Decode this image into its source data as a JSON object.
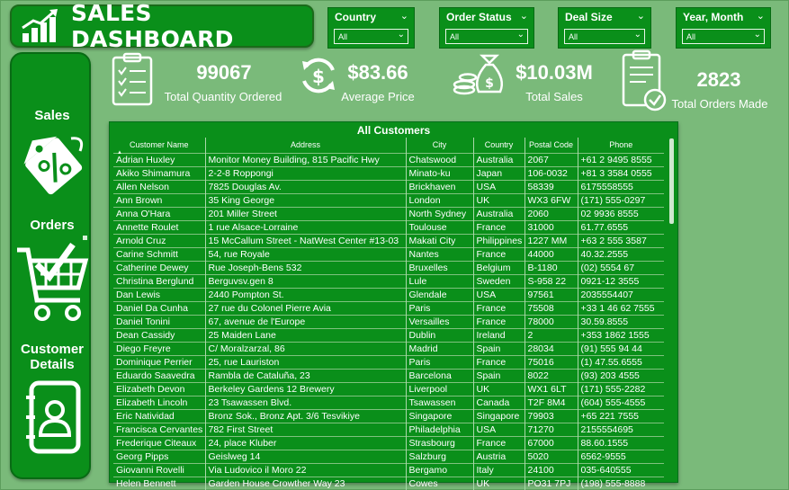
{
  "title": "SALES DASHBOARD",
  "slicers": [
    {
      "label": "Country",
      "value": "All"
    },
    {
      "label": "Order Status",
      "value": "All"
    },
    {
      "label": "Deal Size",
      "value": "All"
    },
    {
      "label": "Year, Month",
      "value": "All"
    }
  ],
  "nav": {
    "sales": "Sales",
    "orders": "Orders",
    "customer_details": [
      "Customer",
      "Details"
    ]
  },
  "kpis": {
    "quantity": {
      "value": "99067",
      "label": "Total Quantity Ordered"
    },
    "price": {
      "value": "$83.66",
      "label": "Average Price"
    },
    "sales": {
      "value": "$10.03M",
      "label": "Total Sales"
    },
    "orders": {
      "value": "2823",
      "label": "Total Orders Made"
    }
  },
  "table": {
    "title": "All Customers",
    "columns": [
      "Customer Name",
      "Address",
      "City",
      "Country",
      "Postal Code",
      "Phone"
    ],
    "rows": [
      [
        "Adrian Huxley",
        "Monitor Money Building, 815 Pacific Hwy",
        "Chatswood",
        "Australia",
        "2067",
        "+61 2 9495 8555"
      ],
      [
        "Akiko Shimamura",
        "2-2-8 Roppongi",
        "Minato-ku",
        "Japan",
        "106-0032",
        "+81 3 3584 0555"
      ],
      [
        "Allen Nelson",
        "7825 Douglas Av.",
        "Brickhaven",
        "USA",
        "58339",
        "6175558555"
      ],
      [
        "Ann Brown",
        "35 King George",
        "London",
        "UK",
        "WX3 6FW",
        "(171) 555-0297"
      ],
      [
        "Anna O'Hara",
        "201 Miller Street",
        "North Sydney",
        "Australia",
        "2060",
        "02 9936 8555"
      ],
      [
        "Annette Roulet",
        "1 rue Alsace-Lorraine",
        "Toulouse",
        "France",
        "31000",
        "61.77.6555"
      ],
      [
        "Arnold Cruz",
        "15 McCallum Street - NatWest Center #13-03",
        "Makati City",
        "Philippines",
        "1227 MM",
        "+63 2 555 3587"
      ],
      [
        "Carine Schmitt",
        "54, rue Royale",
        "Nantes",
        "France",
        "44000",
        "40.32.2555"
      ],
      [
        "Catherine Dewey",
        "Rue Joseph-Bens 532",
        "Bruxelles",
        "Belgium",
        "B-1180",
        "(02) 5554 67"
      ],
      [
        "Christina Berglund",
        "Berguvsv.gen 8",
        "Lule",
        "Sweden",
        "S-958 22",
        "0921-12 3555"
      ],
      [
        "Dan Lewis",
        "2440 Pompton St.",
        "Glendale",
        "USA",
        "97561",
        "2035554407"
      ],
      [
        "Daniel Da Cunha",
        "27 rue du Colonel Pierre Avia",
        "Paris",
        "France",
        "75508",
        "+33 1 46 62 7555"
      ],
      [
        "Daniel Tonini",
        "67, avenue de l'Europe",
        "Versailles",
        "France",
        "78000",
        "30.59.8555"
      ],
      [
        "Dean Cassidy",
        "25 Maiden Lane",
        "Dublin",
        "Ireland",
        "2",
        "+353 1862 1555"
      ],
      [
        "Diego Freyre",
        "C/ Moralzarzal, 86",
        "Madrid",
        "Spain",
        "28034",
        "(91) 555 94 44"
      ],
      [
        "Dominique Perrier",
        "25, rue Lauriston",
        "Paris",
        "France",
        "75016",
        "(1) 47.55.6555"
      ],
      [
        "Eduardo Saavedra",
        "Rambla de Cataluña, 23",
        "Barcelona",
        "Spain",
        "8022",
        "(93) 203 4555"
      ],
      [
        "Elizabeth Devon",
        "Berkeley Gardens 12 Brewery",
        "Liverpool",
        "UK",
        "WX1 6LT",
        "(171) 555-2282"
      ],
      [
        "Elizabeth Lincoln",
        "23 Tsawassen Blvd.",
        "Tsawassen",
        "Canada",
        "T2F 8M4",
        "(604) 555-4555"
      ],
      [
        "Eric Natividad",
        "Bronz Sok., Bronz Apt. 3/6 Tesvikiye",
        "Singapore",
        "Singapore",
        "79903",
        "+65 221 7555"
      ],
      [
        "Francisca Cervantes",
        "782 First Street",
        "Philadelphia",
        "USA",
        "71270",
        "2155554695"
      ],
      [
        "Frederique Citeaux",
        "24, place Kluber",
        "Strasbourg",
        "France",
        "67000",
        "88.60.1555"
      ],
      [
        "Georg Pipps",
        "Geislweg 14",
        "Salzburg",
        "Austria",
        "5020",
        "6562-9555"
      ],
      [
        "Giovanni Rovelli",
        "Via Ludovico il Moro 22",
        "Bergamo",
        "Italy",
        "24100",
        "035-640555"
      ],
      [
        "Helen Bennett",
        "Garden House Crowther Way 23",
        "Cowes",
        "UK",
        "PO31 7PJ",
        "(198) 555-8888"
      ]
    ]
  }
}
